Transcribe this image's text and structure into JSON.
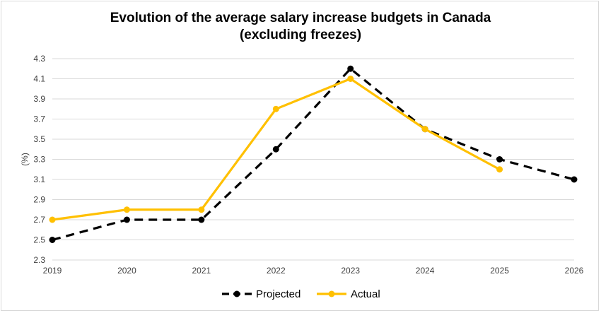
{
  "chart_data": {
    "type": "line",
    "title_line1": "Evolution of the average salary increase budgets in Canada",
    "title_line2": "(excluding freezes)",
    "ylabel": "(%)",
    "xlabel": "",
    "x": [
      "2019",
      "2020",
      "2021",
      "2022",
      "2023",
      "2024",
      "2025",
      "2026"
    ],
    "ylim": [
      2.3,
      4.3
    ],
    "yticks": [
      "2.3",
      "2.5",
      "2.7",
      "2.9",
      "3.1",
      "3.3",
      "3.5",
      "3.7",
      "3.9",
      "4.1",
      "4.3"
    ],
    "grid": "horizontal",
    "legend_position": "bottom",
    "series": [
      {
        "name": "Projected",
        "color": "#000000",
        "style": "dashed",
        "values": [
          2.5,
          2.7,
          2.7,
          3.4,
          4.2,
          3.6,
          3.3,
          3.1
        ]
      },
      {
        "name": "Actual",
        "color": "#ffc000",
        "style": "solid",
        "values": [
          2.7,
          2.8,
          2.8,
          3.8,
          4.1,
          3.6,
          3.2,
          null
        ]
      }
    ]
  }
}
